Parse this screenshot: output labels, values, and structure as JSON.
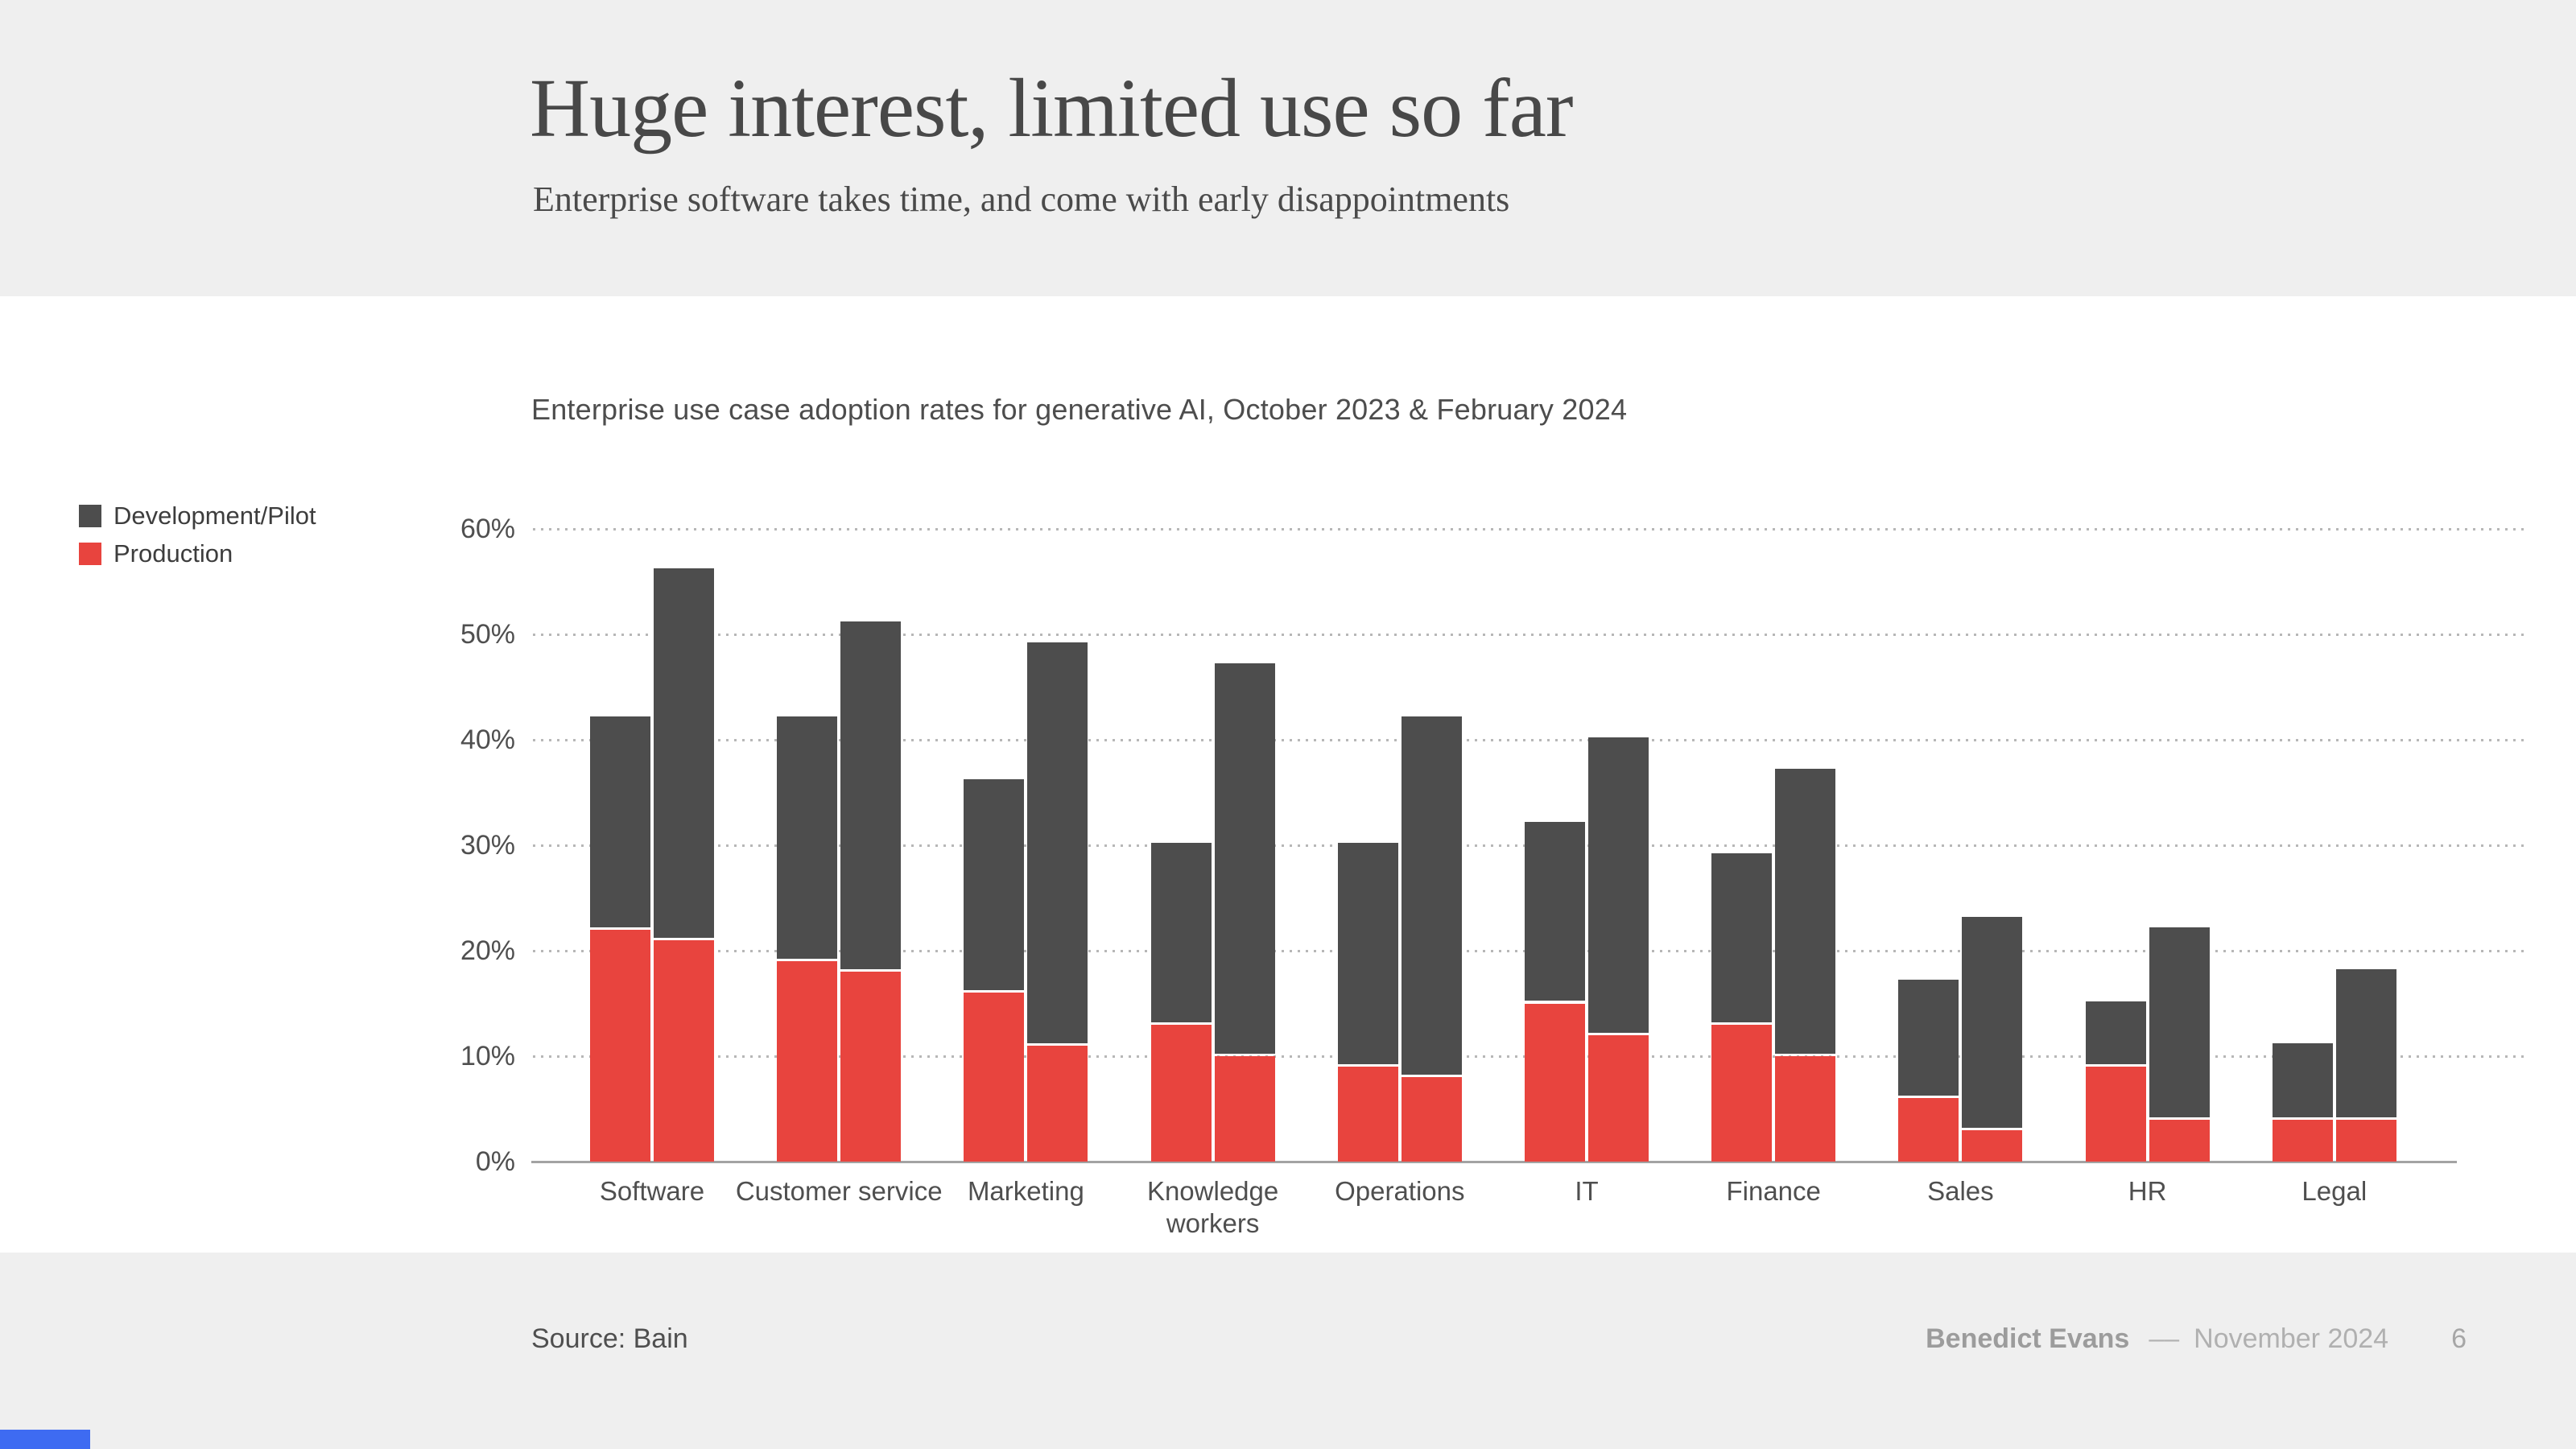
{
  "slide": {
    "title": "Huge interest, limited use so far",
    "subtitle": "Enterprise software takes time, and come with early disappointments"
  },
  "chart": {
    "heading": "Enterprise use case adoption rates for generative AI, October 2023 & February 2024",
    "source": "Source: Bain",
    "legend": [
      {
        "label": "Development/Pilot",
        "color": "#4d4d4d"
      },
      {
        "label": "Production",
        "color": "#e8443e"
      }
    ]
  },
  "chart_data": {
    "type": "bar",
    "stacked": true,
    "title": "Enterprise use case adoption rates for generative AI, October 2023 & February 2024",
    "categories": [
      "Software",
      "Customer service",
      "Marketing",
      "Knowledge workers",
      "Operations",
      "IT",
      "Finance",
      "Sales",
      "HR",
      "Legal"
    ],
    "unit": "%",
    "ylim": [
      0,
      60
    ],
    "yticks": [
      0,
      10,
      20,
      30,
      40,
      50,
      60
    ],
    "grid": "dotted-horizontal",
    "legend_position": "left",
    "series": [
      {
        "name": "October 2023",
        "stack": [
          {
            "name": "Production",
            "values": [
              22,
              19,
              16,
              13,
              9,
              15,
              13,
              6,
              9,
              4
            ]
          },
          {
            "name": "Development/Pilot",
            "values": [
              20,
              23,
              20,
              17,
              21,
              17,
              16,
              11,
              6,
              7
            ]
          }
        ],
        "totals": [
          42,
          42,
          36,
          30,
          30,
          32,
          29,
          17,
          15,
          11
        ]
      },
      {
        "name": "February 2024",
        "stack": [
          {
            "name": "Production",
            "values": [
              21,
              18,
              11,
              10,
              8,
              12,
              10,
              3,
              4,
              4
            ]
          },
          {
            "name": "Development/Pilot",
            "values": [
              35,
              33,
              38,
              37,
              34,
              28,
              27,
              20,
              18,
              14
            ]
          }
        ],
        "totals": [
          56,
          51,
          49,
          47,
          42,
          40,
          37,
          23,
          22,
          18
        ]
      }
    ],
    "colors": {
      "Development/Pilot": "#4d4d4d",
      "Production": "#e8443e"
    }
  },
  "footer": {
    "author": "Benedict Evans",
    "dash": "––",
    "date": "November 2024",
    "page": "6",
    "progress_color": "#3e6bf2"
  }
}
